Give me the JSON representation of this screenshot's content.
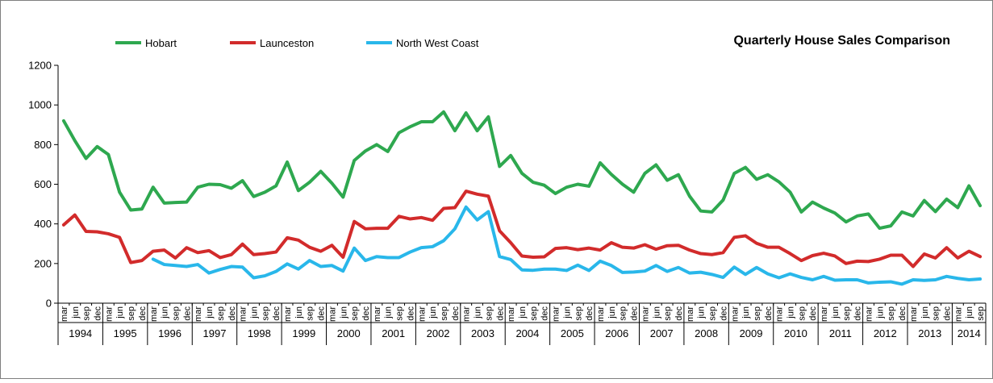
{
  "chart_data": {
    "type": "line",
    "title": "Quarterly House Sales Comparison",
    "xlabel": "",
    "ylabel": "",
    "ylim": [
      0,
      1200
    ],
    "yticks": [
      0,
      200,
      400,
      600,
      800,
      1000,
      1200
    ],
    "grid": false,
    "legend_position": "top-left",
    "quarter_labels": [
      "mar",
      "jun",
      "sep",
      "dec"
    ],
    "years": [
      "1994",
      "1995",
      "1996",
      "1997",
      "1998",
      "1999",
      "2000",
      "2001",
      "2002",
      "2003",
      "2004",
      "2005",
      "2006",
      "2007",
      "2008",
      "2009",
      "2010",
      "2011",
      "2012",
      "2013",
      "2014"
    ],
    "last_year_quarters": 3,
    "series": [
      {
        "name": "Hobart",
        "color": "#2ea84f",
        "values": [
          920,
          820,
          730,
          790,
          750,
          560,
          470,
          475,
          585,
          505,
          508,
          510,
          585,
          600,
          598,
          580,
          618,
          538,
          560,
          592,
          712,
          568,
          610,
          665,
          605,
          535,
          720,
          768,
          800,
          765,
          860,
          890,
          915,
          915,
          965,
          870,
          960,
          870,
          940,
          690,
          745,
          655,
          610,
          595,
          553,
          585,
          600,
          590,
          708,
          650,
          600,
          560,
          655,
          698,
          620,
          648,
          540,
          465,
          460,
          520,
          655,
          685,
          625,
          648,
          612,
          560,
          460,
          510,
          480,
          455,
          410,
          440,
          450,
          378,
          390,
          460,
          440,
          518,
          462,
          525,
          482,
          592,
          492
        ]
      },
      {
        "name": "Launceston",
        "color": "#d22b2b",
        "values": [
          395,
          445,
          362,
          360,
          350,
          332,
          205,
          215,
          262,
          268,
          228,
          280,
          255,
          265,
          230,
          245,
          298,
          245,
          250,
          258,
          330,
          318,
          282,
          262,
          292,
          232,
          412,
          375,
          378,
          378,
          438,
          425,
          432,
          418,
          478,
          482,
          565,
          550,
          540,
          365,
          305,
          238,
          232,
          234,
          276,
          280,
          270,
          278,
          268,
          305,
          282,
          278,
          295,
          272,
          290,
          292,
          268,
          250,
          245,
          255,
          332,
          340,
          302,
          282,
          282,
          250,
          215,
          240,
          252,
          238,
          200,
          212,
          210,
          222,
          242,
          242,
          185,
          248,
          228,
          280,
          228,
          262,
          235
        ]
      },
      {
        "name": "North West Coast",
        "color": "#29b7ea",
        "values": [
          null,
          null,
          null,
          null,
          null,
          null,
          null,
          null,
          222,
          195,
          190,
          185,
          195,
          152,
          170,
          185,
          182,
          128,
          138,
          160,
          198,
          172,
          215,
          185,
          190,
          162,
          278,
          215,
          235,
          230,
          230,
          258,
          280,
          285,
          315,
          375,
          485,
          420,
          462,
          235,
          220,
          168,
          166,
          172,
          172,
          165,
          192,
          165,
          212,
          190,
          155,
          157,
          162,
          190,
          160,
          180,
          152,
          156,
          145,
          130,
          182,
          145,
          180,
          148,
          128,
          148,
          130,
          118,
          135,
          116,
          118,
          118,
          102,
          106,
          108,
          96,
          118,
          115,
          118,
          135,
          125,
          118,
          122
        ]
      }
    ]
  }
}
